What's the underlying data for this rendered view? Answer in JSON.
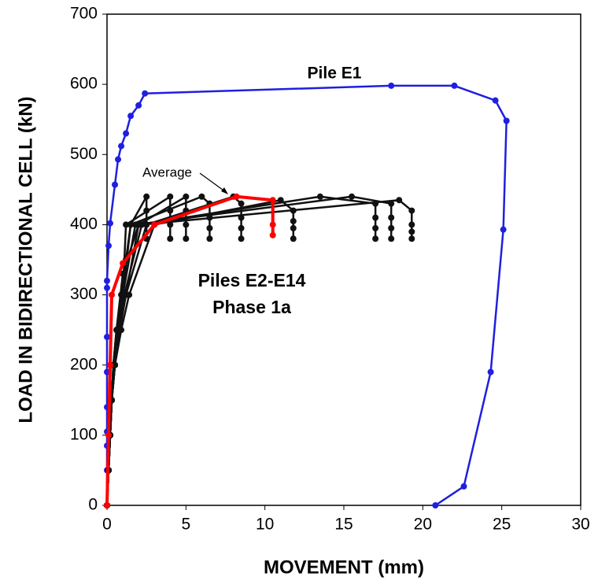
{
  "chart_data": {
    "type": "line",
    "xlabel": "MOVEMENT  (mm)",
    "ylabel": "LOAD IN BIDIRECTIONAL CELL  (kN)",
    "annotations": [
      "Piles E2-E14",
      "Phase 1a"
    ],
    "xlim": [
      0,
      30
    ],
    "xticks": [
      0,
      5,
      10,
      15,
      20,
      25,
      30
    ],
    "ylim": [
      0,
      700
    ],
    "yticks": [
      0,
      100,
      200,
      300,
      400,
      500,
      600,
      700
    ],
    "grid": false,
    "series": [
      {
        "name": "Pile E1",
        "color": "#1f1fe0",
        "x": [
          0,
          0,
          0,
          0,
          0,
          0,
          0,
          0,
          0,
          0.1,
          0.2,
          0.5,
          0.7,
          0.9,
          1.2,
          1.5,
          2,
          2.4,
          18,
          22,
          24.6,
          25.3,
          25.1,
          24.3,
          22.6,
          20.8
        ],
        "values": [
          0,
          50,
          85,
          105,
          140,
          190,
          240,
          310,
          320,
          370,
          402,
          457,
          493,
          512,
          530,
          555,
          570,
          587,
          598,
          598,
          577,
          548,
          393,
          190,
          27,
          0
        ]
      },
      {
        "color": "#111111",
        "x": [
          0,
          0.1,
          0.2,
          0.3,
          0.4,
          0.6,
          0.9,
          1.2,
          1.5,
          2.5,
          2.5,
          2.5,
          2.5
        ],
        "values": [
          0,
          50,
          100,
          150,
          200,
          250,
          300,
          350,
          400,
          440,
          420,
          400,
          380
        ]
      },
      {
        "color": "#111111",
        "x": [
          0,
          0.1,
          0.2,
          0.3,
          0.5,
          0.7,
          1,
          1.2,
          4,
          4,
          4,
          4
        ],
        "values": [
          0,
          50,
          100,
          150,
          200,
          250,
          300,
          400,
          440,
          420,
          400,
          380
        ]
      },
      {
        "color": "#111111",
        "x": [
          0,
          0.1,
          0.2,
          0.3,
          0.4,
          0.6,
          1,
          2,
          5,
          5,
          5,
          5
        ],
        "values": [
          0,
          50,
          100,
          150,
          200,
          250,
          330,
          400,
          440,
          420,
          400,
          380
        ]
      },
      {
        "color": "#111111",
        "x": [
          0,
          0.1,
          0.2,
          0.3,
          0.5,
          0.8,
          1,
          1.5,
          6,
          6.5,
          6.5,
          6.5,
          6.5
        ],
        "values": [
          0,
          50,
          100,
          150,
          200,
          250,
          300,
          400,
          440,
          430,
          410,
          395,
          380
        ]
      },
      {
        "color": "#111111",
        "x": [
          0,
          0.1,
          0.2,
          0.3,
          0.5,
          0.8,
          1.2,
          2.5,
          8,
          8.5,
          8.5,
          8.5,
          8.5
        ],
        "values": [
          0,
          50,
          100,
          150,
          200,
          250,
          300,
          400,
          440,
          430,
          410,
          395,
          380
        ]
      },
      {
        "color": "#111111",
        "x": [
          0,
          0.1,
          0.2,
          0.3,
          0.5,
          0.9,
          1.4,
          3,
          11,
          11.8,
          11.8,
          11.8,
          11.8
        ],
        "values": [
          0,
          50,
          100,
          150,
          200,
          250,
          300,
          400,
          435,
          420,
          405,
          395,
          380
        ]
      },
      {
        "color": "#111111",
        "x": [
          0,
          0.1,
          0.2,
          0.3,
          0.5,
          0.8,
          1.2,
          2,
          13.5,
          17,
          17,
          17,
          17
        ],
        "values": [
          0,
          50,
          100,
          150,
          200,
          250,
          300,
          400,
          440,
          430,
          410,
          395,
          380
        ]
      },
      {
        "color": "#111111",
        "x": [
          0,
          0.1,
          0.2,
          0.3,
          0.4,
          0.7,
          1,
          1.8,
          15.5,
          18,
          18,
          18,
          18
        ],
        "values": [
          0,
          50,
          100,
          150,
          200,
          250,
          300,
          400,
          440,
          430,
          410,
          395,
          380
        ]
      },
      {
        "color": "#111111",
        "x": [
          0,
          0.1,
          0.2,
          0.3,
          0.5,
          0.8,
          1.1,
          2.2,
          18.5,
          19.3,
          19.3,
          19.3,
          19.3
        ],
        "values": [
          0,
          50,
          100,
          150,
          200,
          250,
          300,
          400,
          435,
          420,
          400,
          390,
          380
        ]
      },
      {
        "name": "Average",
        "color": "#ff0000",
        "x": [
          0,
          0.1,
          0.2,
          0.3,
          1,
          3,
          8.2,
          10.5,
          10.5,
          10.5
        ],
        "values": [
          0,
          100,
          200,
          300,
          345,
          400,
          440,
          435,
          400,
          385
        ]
      }
    ]
  }
}
